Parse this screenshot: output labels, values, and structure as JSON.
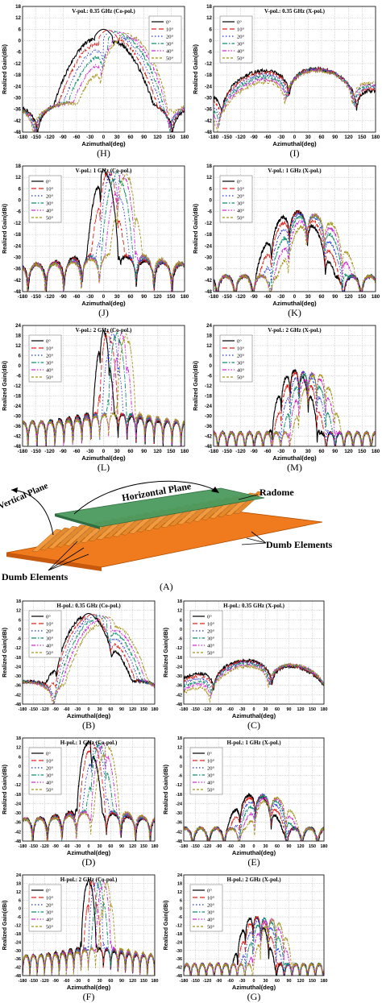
{
  "colors": {
    "0": "#000000",
    "10": "#e2221c",
    "20": "#2433d6",
    "30": "#0f8e6c",
    "40": "#d427d4",
    "50": "#a39416"
  },
  "styles": {
    "0": "",
    "10": "6,3",
    "20": "1.5,2.5",
    "30": "6,2,1.5,2",
    "40": "5,2,1.5,2,1.5,2",
    "50": "3,2"
  },
  "legend": [
    "0°",
    "10°",
    "20°",
    "30°",
    "40°",
    "50°"
  ],
  "diagram": {
    "labels": {
      "vertical_plane": "Vertical Plane",
      "horizontal_plane": "Horizontal Plane",
      "radome": "Radome",
      "dumb_elements_right": "Dumb Elements",
      "dumb_elements_left": "Dumb Elements",
      "letter": "(A)"
    }
  },
  "chart_data": [
    {
      "id": "H",
      "letter": "(H)",
      "type": "line",
      "title": "V-pol.: 0.35 GHz (Co-pol.)",
      "xlabel": "Azimuthal(deg)",
      "ylabel": "Realized Gain(dBi)",
      "xlim": [
        -180,
        180
      ],
      "ylim": [
        -48,
        18
      ],
      "xticks": [
        -180,
        -150,
        -120,
        -90,
        -60,
        -30,
        0,
        30,
        60,
        90,
        120,
        150,
        180
      ],
      "yticks": [
        18,
        12,
        6,
        0,
        -6,
        -12,
        -18,
        -24,
        -30,
        -36,
        -42,
        -48
      ],
      "mode": "lowco",
      "peaks": [
        0,
        10,
        20,
        30,
        40,
        50
      ],
      "peak_gain": 6,
      "legend_pos": "top-right"
    },
    {
      "id": "I",
      "letter": "(I)",
      "type": "line",
      "title": "V-pol.: 0.35 GHz (X-pol.)",
      "xlabel": "Azimuthal(deg)",
      "ylabel": "Realized Gain(dBi)",
      "xlim": [
        -180,
        180
      ],
      "ylim": [
        -48,
        18
      ],
      "xticks": [
        -180,
        -150,
        -120,
        -90,
        -60,
        -30,
        0,
        30,
        60,
        90,
        120,
        150,
        180
      ],
      "yticks": [
        18,
        12,
        6,
        0,
        -6,
        -12,
        -18,
        -24,
        -30,
        -36,
        -42,
        -48
      ],
      "mode": "lowx",
      "peaks": [
        0,
        10,
        20,
        30,
        40,
        50
      ],
      "peak_gain": -14,
      "legend_pos": "top-left"
    },
    {
      "id": "J",
      "letter": "(J)",
      "type": "line",
      "title": "V-pol.: 1 GHz (Co-pol.)",
      "xlabel": "Azimuthal(deg)",
      "ylabel": "Realized Gain(dBi)",
      "xlim": [
        -180,
        180
      ],
      "ylim": [
        -48,
        18
      ],
      "xticks": [
        -180,
        -150,
        -120,
        -90,
        -60,
        -30,
        0,
        30,
        60,
        90,
        120,
        150,
        180
      ],
      "yticks": [
        18,
        12,
        6,
        0,
        -6,
        -12,
        -18,
        -24,
        -30,
        -36,
        -42,
        -48
      ],
      "mode": "midco",
      "peaks": [
        0,
        10,
        20,
        30,
        40,
        50
      ],
      "peak_gain": 16,
      "legend_pos": "top-left"
    },
    {
      "id": "K",
      "letter": "(K)",
      "type": "line",
      "title": "V-pol.: 1 GHz (X-pol.)",
      "xlabel": "Azimuthal(deg)",
      "ylabel": "Realized Gain(dBi)",
      "xlim": [
        -180,
        180
      ],
      "ylim": [
        -48,
        18
      ],
      "xticks": [
        -180,
        -150,
        -120,
        -90,
        -60,
        -30,
        0,
        30,
        60,
        90,
        120,
        150,
        180
      ],
      "yticks": [
        18,
        12,
        6,
        0,
        -6,
        -12,
        -18,
        -24,
        -30,
        -36,
        -42,
        -48
      ],
      "mode": "midx",
      "peaks": [
        0,
        10,
        20,
        30,
        40,
        50
      ],
      "peak_gain": -6,
      "legend_pos": "top-left"
    },
    {
      "id": "L",
      "letter": "(L)",
      "type": "line",
      "title": "V-pol.: 2 GHz (Co-pol.)",
      "xlabel": "Azimuthal(deg)",
      "ylabel": "Realized Gain(dBi)",
      "xlim": [
        -180,
        180
      ],
      "ylim": [
        -48,
        24
      ],
      "xticks": [
        -180,
        -150,
        -120,
        -90,
        -60,
        -30,
        0,
        30,
        60,
        90,
        120,
        150,
        180
      ],
      "yticks": [
        24,
        18,
        12,
        6,
        0,
        -6,
        -12,
        -18,
        -24,
        -30,
        -36,
        -42,
        -48
      ],
      "mode": "hico",
      "peaks": [
        0,
        10,
        20,
        30,
        40,
        50
      ],
      "peak_gain": 21,
      "legend_pos": "top-left"
    },
    {
      "id": "M",
      "letter": "(M)",
      "type": "line",
      "title": "V-pol.: 2 GHz (X-pol.)",
      "xlabel": "Azimuthal(deg)",
      "ylabel": "Realized Gain(dBi)",
      "xlim": [
        -180,
        180
      ],
      "ylim": [
        -48,
        24
      ],
      "xticks": [
        -180,
        -150,
        -120,
        -90,
        -60,
        -30,
        0,
        30,
        60,
        90,
        120,
        150,
        180
      ],
      "yticks": [
        24,
        18,
        12,
        6,
        0,
        -6,
        -12,
        -18,
        -24,
        -30,
        -36,
        -42,
        -48
      ],
      "mode": "hix",
      "peaks": [
        0,
        10,
        20,
        30,
        40,
        50
      ],
      "peak_gain": -3,
      "legend_pos": "top-left"
    },
    {
      "id": "B",
      "letter": "(B)",
      "type": "line",
      "title": "H-pol.: 0.35 GHz (Co-pol.)",
      "xlabel": "Azimuthal(deg)",
      "ylabel": "Realized Gain(dBi)",
      "xlim": [
        -180,
        180
      ],
      "ylim": [
        -48,
        18
      ],
      "xticks": [
        -180,
        -150,
        -120,
        -90,
        -60,
        -30,
        0,
        30,
        60,
        90,
        120,
        150,
        180
      ],
      "yticks": [
        18,
        12,
        6,
        0,
        -6,
        -12,
        -18,
        -24,
        -30,
        -36,
        -42,
        -48
      ],
      "mode": "lowco",
      "peaks": [
        0,
        10,
        20,
        30,
        40,
        50
      ],
      "peak_gain": 10,
      "legend_pos": "top-left"
    },
    {
      "id": "C",
      "letter": "(C)",
      "type": "line",
      "title": "H-pol.: 0.35 GHz (X-pol.)",
      "xlabel": "Azimuthal(deg)",
      "ylabel": "Realized Gain(dBi)",
      "xlim": [
        -180,
        180
      ],
      "ylim": [
        -48,
        18
      ],
      "xticks": [
        -180,
        -150,
        -120,
        -90,
        -60,
        -30,
        0,
        30,
        60,
        90,
        120,
        150,
        180
      ],
      "yticks": [
        18,
        12,
        6,
        0,
        -6,
        -12,
        -18,
        -24,
        -30,
        -36,
        -42,
        -48
      ],
      "mode": "lowx",
      "peaks": [
        0,
        10,
        20,
        30,
        40,
        50
      ],
      "peak_gain": -20,
      "legend_pos": "top-left"
    },
    {
      "id": "D",
      "letter": "(D)",
      "type": "line",
      "title": "H-pol.: 1 GHz (Co-pol.)",
      "xlabel": "Azimuthal(deg)",
      "ylabel": "Realized Gain(dBi)",
      "xlim": [
        -180,
        180
      ],
      "ylim": [
        -48,
        18
      ],
      "xticks": [
        -180,
        -150,
        -120,
        -90,
        -60,
        -30,
        0,
        30,
        60,
        90,
        120,
        150,
        180
      ],
      "yticks": [
        18,
        12,
        6,
        0,
        -6,
        -12,
        -18,
        -24,
        -30,
        -36,
        -42,
        -48
      ],
      "mode": "midco",
      "peaks": [
        0,
        10,
        20,
        30,
        40,
        50
      ],
      "peak_gain": 16,
      "legend_pos": "top-left"
    },
    {
      "id": "E",
      "letter": "(E)",
      "type": "line",
      "title": "H-pol.: 1 GHz (X-pol.)",
      "xlabel": "Azimuthal(deg)",
      "ylabel": "Realized Gain(dBi)",
      "xlim": [
        -180,
        180
      ],
      "ylim": [
        -48,
        18
      ],
      "xticks": [
        -180,
        -150,
        -120,
        -90,
        -60,
        -30,
        0,
        30,
        60,
        90,
        120,
        150,
        180
      ],
      "yticks": [
        18,
        12,
        6,
        0,
        -6,
        -12,
        -18,
        -24,
        -30,
        -36,
        -42,
        -48
      ],
      "mode": "midx",
      "peaks": [
        0,
        10,
        20,
        30,
        40,
        50
      ],
      "peak_gain": -18,
      "legend_pos": "top-left"
    },
    {
      "id": "F",
      "letter": "(F)",
      "type": "line",
      "title": "H-pol.: 2 GHz (Co-pol.)",
      "xlabel": "Azimuthal(deg)",
      "ylabel": "Realized Gain(dBi)",
      "xlim": [
        -180,
        180
      ],
      "ylim": [
        -48,
        24
      ],
      "xticks": [
        -180,
        -150,
        -120,
        -90,
        -60,
        -30,
        0,
        30,
        60,
        90,
        120,
        150,
        180
      ],
      "yticks": [
        24,
        18,
        12,
        6,
        0,
        -6,
        -12,
        -18,
        -24,
        -30,
        -36,
        -42,
        -48
      ],
      "mode": "hico",
      "peaks": [
        0,
        10,
        20,
        30,
        40,
        50
      ],
      "peak_gain": 21,
      "legend_pos": "top-left"
    },
    {
      "id": "G",
      "letter": "(G)",
      "type": "line",
      "title": "H-pol.: 2 GHz (X-pol.)",
      "xlabel": "Azimuthal(deg)",
      "ylabel": "Realized Gain(dBi)",
      "xlim": [
        -180,
        180
      ],
      "ylim": [
        -48,
        24
      ],
      "xticks": [
        -180,
        -150,
        -120,
        -90,
        -60,
        -30,
        0,
        30,
        60,
        90,
        120,
        150,
        180
      ],
      "yticks": [
        24,
        18,
        12,
        6,
        0,
        -6,
        -12,
        -18,
        -24,
        -30,
        -36,
        -42,
        -48
      ],
      "mode": "hix",
      "peaks": [
        0,
        10,
        20,
        30,
        40,
        50
      ],
      "peak_gain": -6,
      "legend_pos": "top-left"
    }
  ]
}
